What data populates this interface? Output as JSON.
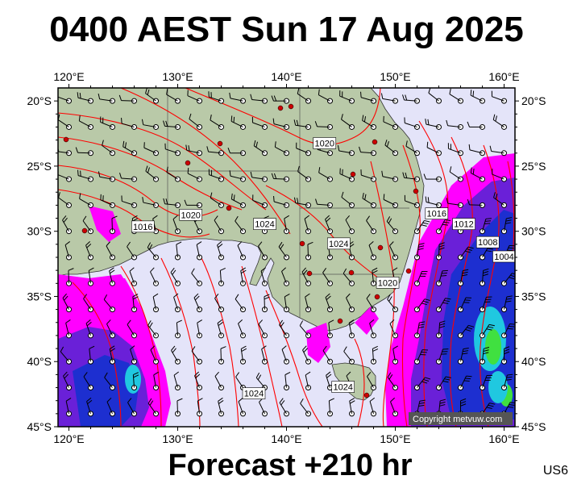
{
  "title": "0400 AEST Sun 17 Aug 2025",
  "footer": "Forecast +210 hr",
  "code": "US6",
  "copyright": "Copyright metvuw.com",
  "axes": {
    "lon_labels": [
      "120°E",
      "130°E",
      "140°E",
      "150°E",
      "160°E"
    ],
    "lat_labels": [
      "20°S",
      "25°S",
      "30°S",
      "35°S",
      "40°S",
      "45°S"
    ]
  },
  "isobar_labels": [
    {
      "text": "1020",
      "lon": 143.5,
      "lat": -23.3
    },
    {
      "text": "1016",
      "lon": 126.8,
      "lat": -29.7
    },
    {
      "text": "1020",
      "lon": 131.2,
      "lat": -28.8
    },
    {
      "text": "1024",
      "lon": 138.0,
      "lat": -29.5
    },
    {
      "text": "1024",
      "lon": 144.8,
      "lat": -31.0
    },
    {
      "text": "1020",
      "lon": 149.3,
      "lat": -34.0
    },
    {
      "text": "1016",
      "lon": 153.8,
      "lat": -28.7
    },
    {
      "text": "1012",
      "lon": 156.3,
      "lat": -29.5
    },
    {
      "text": "1008",
      "lon": 158.5,
      "lat": -30.9
    },
    {
      "text": "1004",
      "lon": 160.0,
      "lat": -32.0
    },
    {
      "text": "1024",
      "lon": 137.0,
      "lat": -42.5
    },
    {
      "text": "1024",
      "lon": 145.2,
      "lat": -42.0
    }
  ],
  "colors": {
    "land": "#b9c9a8",
    "ocean": "#e4e4f9",
    "isobar": "#ff0000",
    "rain_light": "#ff00ff",
    "rain_mid": "#6a20d8",
    "rain_heavy": "#1d2fd0",
    "rain_core": "#20c8e0",
    "rain_extreme": "#40e040",
    "station": "#cc0000"
  },
  "icons": [
    "wind-barb-icon",
    "station-dot-icon"
  ]
}
